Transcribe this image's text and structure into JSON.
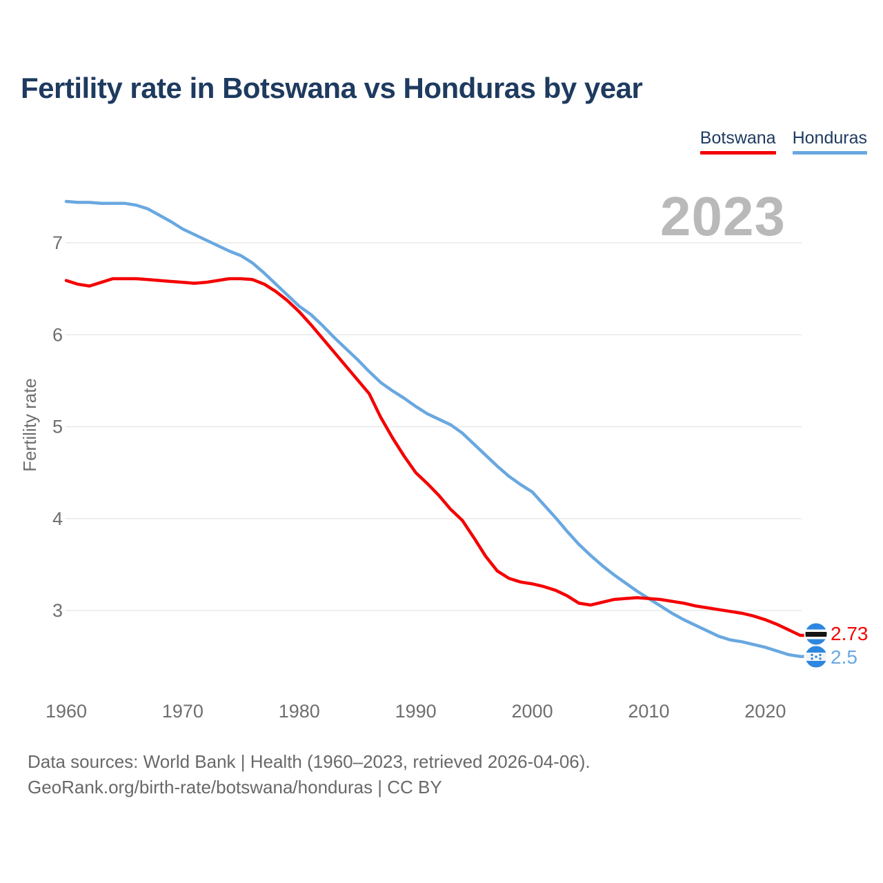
{
  "title": "Fertility rate in Botswana vs Honduras by year",
  "legend": [
    {
      "label": "Botswana",
      "color": "#f40000"
    },
    {
      "label": "Honduras",
      "color": "#69a8e0"
    }
  ],
  "watermark_year": "2023",
  "footer": {
    "line1": "Data sources: World Bank | Health (1960–2023, retrieved 2026-04-06).",
    "line2": "GeoRank.org/birth-rate/botswana/honduras | CC BY"
  },
  "end_labels": [
    {
      "series": "Botswana",
      "value": "2.73",
      "flag_icon": "botswana-flag-icon",
      "color": "#f40000"
    },
    {
      "series": "Honduras",
      "value": "2.5",
      "flag_icon": "honduras-flag-icon",
      "color": "#69a8e0"
    }
  ],
  "chart_data": {
    "type": "line",
    "title": "Fertility rate in Botswana vs Honduras by year",
    "xlabel": "",
    "ylabel": "Fertility rate",
    "x_range": [
      1960,
      2023
    ],
    "x_interval": 1,
    "ylim": [
      2.3,
      7.6
    ],
    "yticks": [
      7,
      6,
      5,
      4,
      3
    ],
    "xticks": [
      1960,
      1970,
      1980,
      1990,
      2000,
      2010,
      2020
    ],
    "grid": "horizontal",
    "legend_position": "top-right",
    "series": [
      {
        "name": "Honduras",
        "color": "#69a8e0",
        "values": [
          7.45,
          7.44,
          7.44,
          7.43,
          7.43,
          7.43,
          7.41,
          7.37,
          7.3,
          7.23,
          7.15,
          7.09,
          7.03,
          6.97,
          6.91,
          6.86,
          6.78,
          6.67,
          6.55,
          6.43,
          6.31,
          6.22,
          6.1,
          5.97,
          5.85,
          5.73,
          5.6,
          5.48,
          5.39,
          5.31,
          5.22,
          5.14,
          5.08,
          5.02,
          4.93,
          4.81,
          4.69,
          4.57,
          4.46,
          4.37,
          4.29,
          4.15,
          4.01,
          3.86,
          3.72,
          3.6,
          3.49,
          3.39,
          3.3,
          3.21,
          3.13,
          3.05,
          2.97,
          2.9,
          2.84,
          2.78,
          2.72,
          2.68,
          2.66,
          2.63,
          2.6,
          2.56,
          2.52,
          2.5
        ]
      },
      {
        "name": "Botswana",
        "color": "#f40000",
        "values": [
          6.59,
          6.55,
          6.53,
          6.57,
          6.61,
          6.61,
          6.61,
          6.6,
          6.59,
          6.58,
          6.57,
          6.56,
          6.57,
          6.59,
          6.61,
          6.61,
          6.6,
          6.55,
          6.47,
          6.37,
          6.25,
          6.11,
          5.96,
          5.81,
          5.66,
          5.51,
          5.36,
          5.1,
          4.88,
          4.68,
          4.5,
          4.38,
          4.25,
          4.1,
          3.98,
          3.79,
          3.59,
          3.43,
          3.35,
          3.31,
          3.29,
          3.26,
          3.22,
          3.16,
          3.08,
          3.06,
          3.09,
          3.12,
          3.13,
          3.14,
          3.13,
          3.12,
          3.1,
          3.08,
          3.05,
          3.03,
          3.01,
          2.99,
          2.97,
          2.94,
          2.9,
          2.85,
          2.79,
          2.73
        ]
      }
    ]
  }
}
